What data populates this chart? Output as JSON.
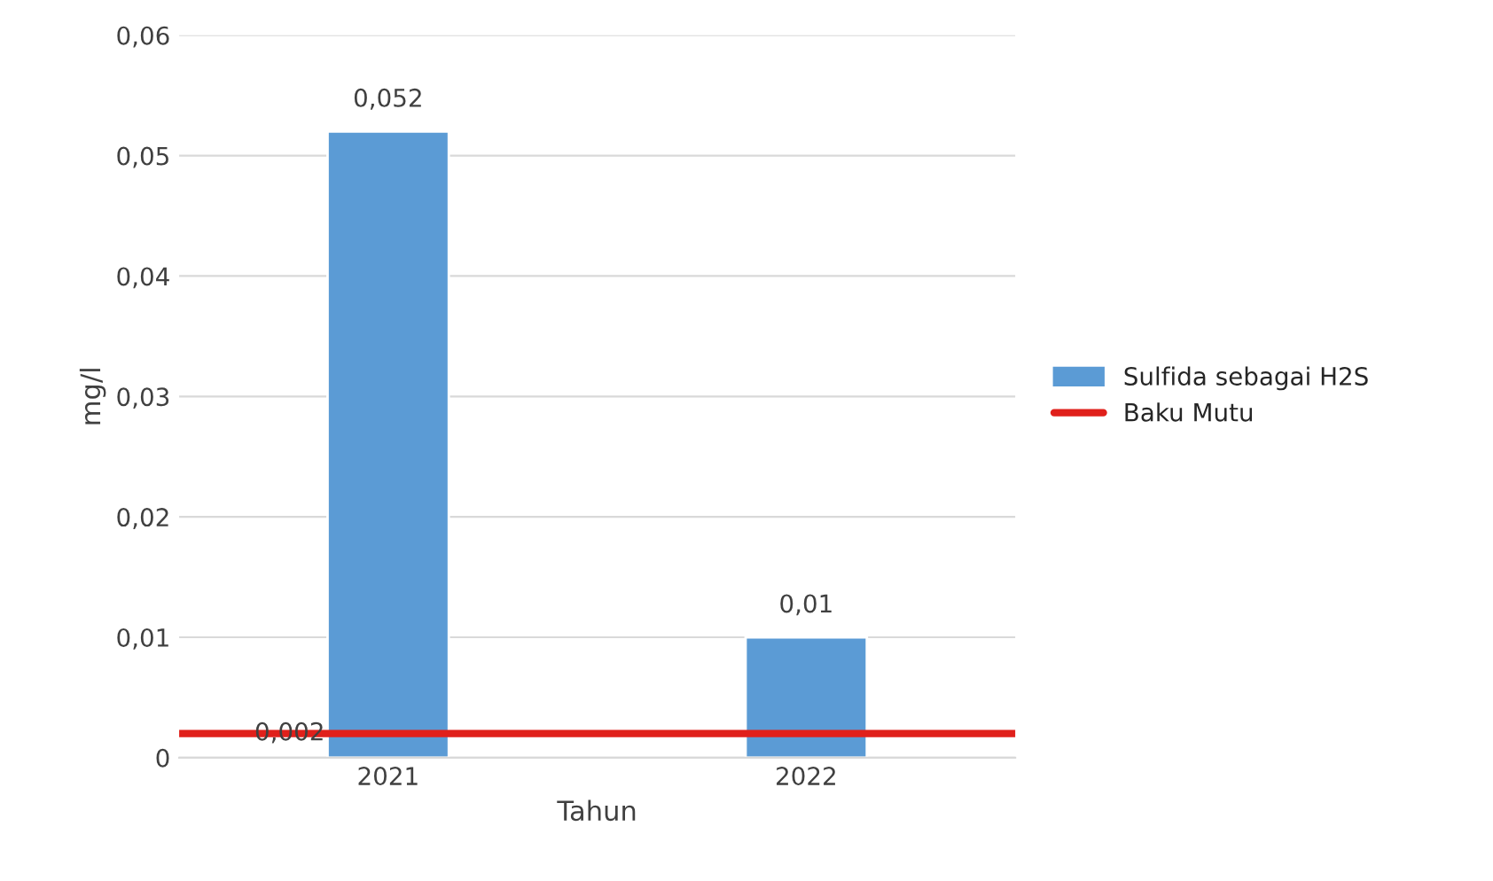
{
  "chart_data": {
    "type": "bar",
    "xlabel": "Tahun",
    "ylabel": "mg/l",
    "categories": [
      "2021",
      "2022"
    ],
    "series": [
      {
        "name": "Sulfida sebagai H2S",
        "color": "#5b9bd5",
        "values": [
          0.052,
          0.01
        ],
        "value_labels": [
          "0,052",
          "0,01"
        ]
      }
    ],
    "ref_lines": [
      {
        "axis": "y",
        "value": 0.002,
        "label": "Baku Mutu",
        "color": "#e0201b",
        "line_style": "solid"
      }
    ],
    "annotations": [
      {
        "text": "0,002",
        "x": "2021",
        "y": 0.002
      }
    ],
    "ylim": [
      0,
      0.06
    ],
    "yticks": [
      {
        "value": 0,
        "label": "0"
      },
      {
        "value": 0.01,
        "label": "0,01"
      },
      {
        "value": 0.02,
        "label": "0,02"
      },
      {
        "value": 0.03,
        "label": "0,03"
      },
      {
        "value": 0.04,
        "label": "0,04"
      },
      {
        "value": 0.05,
        "label": "0,05"
      },
      {
        "value": 0.06,
        "label": "0,06"
      }
    ],
    "grid": "y",
    "legend": "right"
  }
}
